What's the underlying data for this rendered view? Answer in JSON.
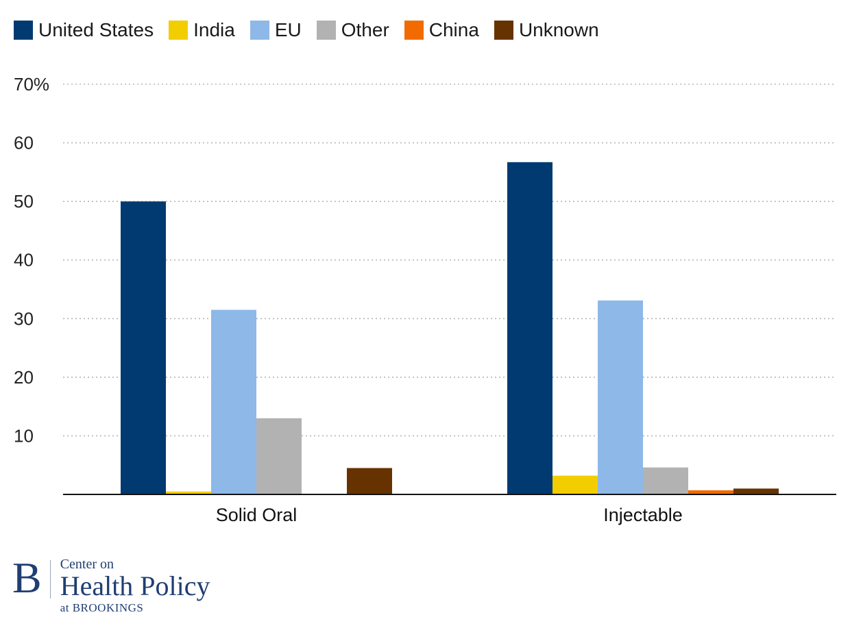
{
  "chart_data": {
    "type": "bar",
    "categories": [
      "Solid Oral",
      "Injectable"
    ],
    "series": [
      {
        "name": "United States",
        "color": "#003a70",
        "values": [
          50,
          56.7
        ]
      },
      {
        "name": "India",
        "color": "#f2cd00",
        "values": [
          0.5,
          3.2
        ]
      },
      {
        "name": "EU",
        "color": "#8db8e8",
        "values": [
          31.5,
          33.1
        ]
      },
      {
        "name": "Other",
        "color": "#b2b2b2",
        "values": [
          13.0,
          4.6
        ]
      },
      {
        "name": "China",
        "color": "#f26b00",
        "values": [
          0,
          0.7
        ]
      },
      {
        "name": "Unknown",
        "color": "#663300",
        "values": [
          4.5,
          1.0
        ]
      }
    ],
    "ylim": [
      0,
      70
    ],
    "yticks": [
      0,
      10,
      20,
      30,
      40,
      50,
      60,
      70
    ],
    "ytick_labels": [
      "",
      "10",
      "20",
      "30",
      "40",
      "50",
      "60",
      "70%"
    ],
    "grid": true,
    "legend_position": "top-left",
    "title": "",
    "xlabel": "",
    "ylabel": ""
  },
  "logo": {
    "mark": "B",
    "line1": "Center on",
    "line2": "Health Policy",
    "line3": "at BROOKINGS"
  }
}
